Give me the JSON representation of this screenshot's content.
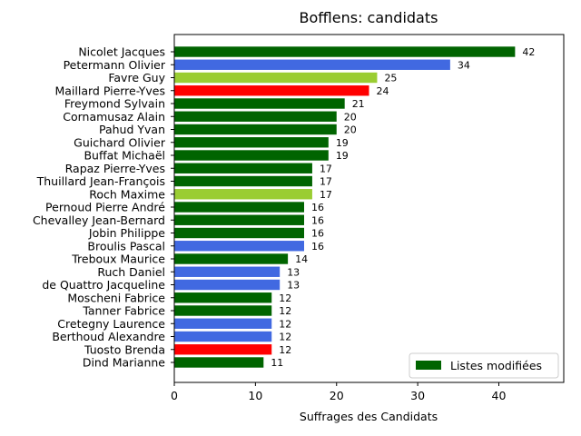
{
  "chart_data": {
    "type": "bar",
    "orientation": "horizontal",
    "title": "Bofflens: candidats",
    "xlabel": "Suffrages des Candidats",
    "ylabel": "",
    "xlim": [
      0,
      48
    ],
    "xticks": [
      "0",
      "10",
      "20",
      "30",
      "40"
    ],
    "categories": [
      "Nicolet Jacques",
      "Petermann Olivier",
      "Favre Guy",
      "Maillard Pierre-Yves",
      "Freymond Sylvain",
      "Cornamusaz Alain",
      "Pahud Yvan",
      "Guichard Olivier",
      "Buffat Michaël",
      "Rapaz Pierre-Yves",
      "Thuillard Jean-François",
      "Roch Maxime",
      "Pernoud Pierre André",
      "Chevalley Jean-Bernard",
      "Jobin Philippe",
      "Broulis Pascal",
      "Treboux Maurice",
      "Ruch Daniel",
      "de Quattro Jacqueline",
      "Moscheni Fabrice",
      "Tanner Fabrice",
      "Cretegny Laurence",
      "Berthoud Alexandre",
      "Tuosto Brenda",
      "Dind Marianne"
    ],
    "values": [
      42,
      34,
      25,
      24,
      21,
      20,
      20,
      19,
      19,
      17,
      17,
      17,
      16,
      16,
      16,
      16,
      14,
      13,
      13,
      12,
      12,
      12,
      12,
      12,
      11
    ],
    "value_labels": [
      "42",
      "34",
      "25",
      "24",
      "21",
      "20",
      "20",
      "19",
      "19",
      "17",
      "17",
      "17",
      "16",
      "16",
      "16",
      "16",
      "14",
      "13",
      "13",
      "12",
      "12",
      "12",
      "12",
      "12",
      "11"
    ],
    "bar_colors": [
      "#006400",
      "#4169e1",
      "#9acd32",
      "#ff0000",
      "#006400",
      "#006400",
      "#006400",
      "#006400",
      "#006400",
      "#006400",
      "#006400",
      "#9acd32",
      "#006400",
      "#006400",
      "#006400",
      "#4169e1",
      "#006400",
      "#4169e1",
      "#4169e1",
      "#006400",
      "#006400",
      "#4169e1",
      "#4169e1",
      "#ff0000",
      "#006400"
    ],
    "legend": {
      "entries": [
        {
          "label": "Listes modifiées",
          "color": "#006400"
        }
      ],
      "placement": "lower-right"
    },
    "grid": false
  }
}
